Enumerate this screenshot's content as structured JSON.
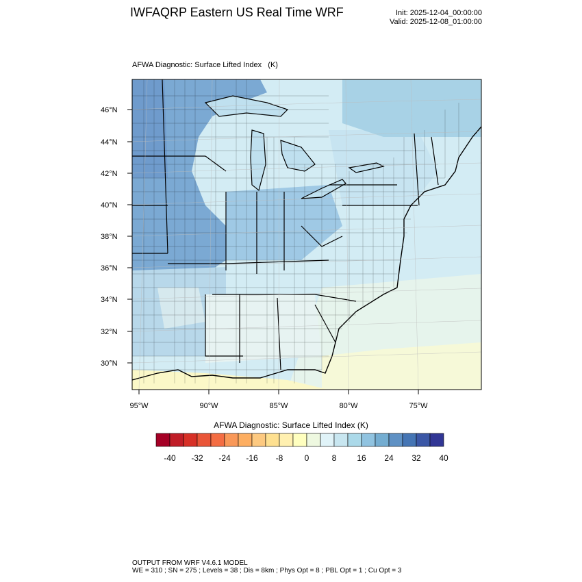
{
  "header": {
    "title": "IWFAQRP Eastern US Real Time WRF",
    "init": "Init: 2025-12-04_00:00:00",
    "valid": "Valid: 2025-12-08_01:00:00"
  },
  "map": {
    "field_title": "AFWA Diagnostic: Surface Lifted Index   (K)",
    "lat_labels": [
      "46°N",
      "44°N",
      "42°N",
      "40°N",
      "38°N",
      "36°N",
      "34°N",
      "32°N",
      "30°N"
    ],
    "lon_labels": [
      "95°W",
      "90°W",
      "85°W",
      "80°W",
      "75°W"
    ]
  },
  "colorbar": {
    "title": "AFWA Diagnostic: Surface Lifted Index  (K)",
    "tick_labels": [
      "-40",
      "-32",
      "-24",
      "-16",
      "-8",
      "0",
      "8",
      "16",
      "24",
      "32",
      "40"
    ],
    "colors": [
      "#a50026",
      "#c01d27",
      "#d73027",
      "#e95538",
      "#f46d43",
      "#f99858",
      "#fdae61",
      "#fdc980",
      "#fee090",
      "#fff0b0",
      "#ffffbf",
      "#eef8e0",
      "#e0f3f8",
      "#c8e6f0",
      "#abd9e9",
      "#90c3e0",
      "#74add1",
      "#5f91c4",
      "#4575b4",
      "#3b57a6",
      "#313695"
    ]
  },
  "footer": {
    "line1": "OUTPUT FROM WRF V4.6.1 MODEL",
    "line2": "WE = 310 ; SN = 275 ; Levels = 38 ; Dis = 8km ; Phys Opt = 8 ; PBL Opt = 1 ; Cu Opt = 3"
  }
}
